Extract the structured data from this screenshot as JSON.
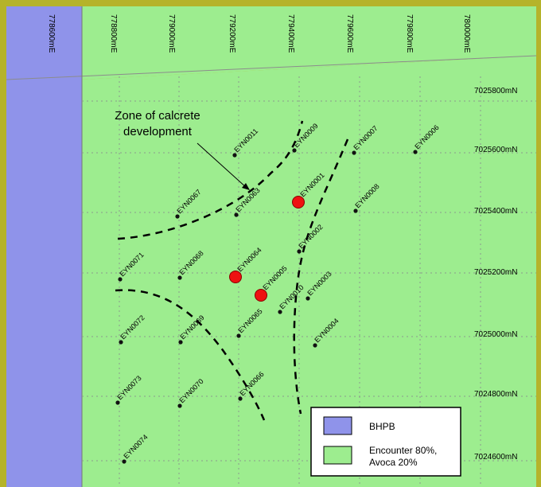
{
  "colors": {
    "frame": "#b5b32a",
    "bhpb_fill": "#8f93ea",
    "encounter_fill": "#9ded8f",
    "grid": "#8c9c8c",
    "collar": "#111111",
    "highlight": "#ee1111"
  },
  "easting_labels": [
    "778600mE",
    "778800mE",
    "779000mE",
    "779200mE",
    "779400mE",
    "779600mE",
    "779800mE",
    "780000mE"
  ],
  "northing_labels": [
    "7025800mN",
    "7025600mN",
    "7025400mN",
    "7025200mN",
    "7025000mN",
    "7024800mN",
    "7024600mN"
  ],
  "annotation": {
    "line1": "Zone of calcrete",
    "line2": "development"
  },
  "legend": [
    {
      "label": "BHPB",
      "color": "#8f93ea"
    },
    {
      "label": "Encounter 80%,",
      "label2": "Avoca 20%",
      "color": "#9ded8f"
    }
  ],
  "drillholes": [
    {
      "id": "EYN0011",
      "highlight": false
    },
    {
      "id": "EYN0009",
      "highlight": false
    },
    {
      "id": "EYN0007",
      "highlight": false
    },
    {
      "id": "EYN0006",
      "highlight": false
    },
    {
      "id": "EYN0063",
      "highlight": false
    },
    {
      "id": "EYN0001",
      "highlight": true
    },
    {
      "id": "EYN0008",
      "highlight": false
    },
    {
      "id": "EYN0067",
      "highlight": false
    },
    {
      "id": "EYN0002",
      "highlight": false
    },
    {
      "id": "EYN0071",
      "highlight": false
    },
    {
      "id": "EYN0068",
      "highlight": false
    },
    {
      "id": "EYN0064",
      "highlight": true
    },
    {
      "id": "EYN0005",
      "highlight": true
    },
    {
      "id": "EYN0010",
      "highlight": false
    },
    {
      "id": "EYN0003",
      "highlight": false
    },
    {
      "id": "EYN0065",
      "highlight": false
    },
    {
      "id": "EYN0072",
      "highlight": false
    },
    {
      "id": "EYN0069",
      "highlight": false
    },
    {
      "id": "EYN0004",
      "highlight": false
    },
    {
      "id": "EYN0073",
      "highlight": false
    },
    {
      "id": "EYN0070",
      "highlight": false
    },
    {
      "id": "EYN0066",
      "highlight": false
    },
    {
      "id": "EYN0074",
      "highlight": false
    }
  ]
}
